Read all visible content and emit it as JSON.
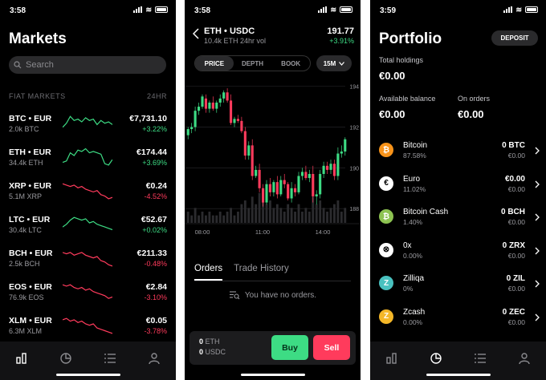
{
  "colors": {
    "positive": "#3ddc84",
    "negative": "#ff3b5c",
    "background": "#000000",
    "panel": "#2a2a2c"
  },
  "markets_screen": {
    "status_time": "3:58",
    "title": "Markets",
    "search_placeholder": "Search",
    "section_label": "FIAT MARKETS",
    "period_label": "24HR",
    "rows": [
      {
        "pair": "BTC • EUR",
        "volume": "2.0k BTC",
        "price": "€7,731.10",
        "change": "+3.22%",
        "trend": "up",
        "spark": [
          6,
          9,
          14,
          11,
          12,
          10,
          13,
          11,
          12,
          8,
          11,
          9,
          10,
          8
        ]
      },
      {
        "pair": "ETH • EUR",
        "volume": "34.4k ETH",
        "price": "€174.44",
        "change": "+3.69%",
        "trend": "up",
        "spark": [
          5,
          6,
          12,
          10,
          14,
          13,
          15,
          12,
          13,
          12,
          11,
          4,
          3,
          7
        ]
      },
      {
        "pair": "XRP • EUR",
        "volume": "5.1M XRP",
        "price": "€0.24",
        "change": "-4.52%",
        "trend": "down",
        "spark": [
          14,
          13,
          12,
          13,
          11,
          12,
          10,
          9,
          8,
          9,
          6,
          5,
          3,
          4
        ]
      },
      {
        "pair": "LTC • EUR",
        "volume": "30.4k LTC",
        "price": "€52.67",
        "change": "+0.02%",
        "trend": "up",
        "spark": [
          7,
          9,
          12,
          14,
          13,
          12,
          13,
          10,
          11,
          9,
          8,
          7,
          6,
          5
        ]
      },
      {
        "pair": "BCH • EUR",
        "volume": "2.5k BCH",
        "price": "€211.33",
        "change": "-0.48%",
        "trend": "down",
        "spark": [
          13,
          12,
          13,
          11,
          12,
          13,
          11,
          10,
          9,
          10,
          7,
          6,
          4,
          3
        ]
      },
      {
        "pair": "EOS • EUR",
        "volume": "76.9k EOS",
        "price": "€2.84",
        "change": "-3.10%",
        "trend": "down",
        "spark": [
          14,
          13,
          14,
          12,
          11,
          12,
          10,
          11,
          9,
          8,
          7,
          6,
          4,
          5
        ]
      },
      {
        "pair": "XLM • EUR",
        "volume": "6.3M XLM",
        "price": "€0.05",
        "change": "-3.78%",
        "trend": "down",
        "spark": [
          13,
          14,
          12,
          13,
          11,
          12,
          10,
          9,
          10,
          7,
          6,
          5,
          4,
          3
        ]
      }
    ],
    "tabs": [
      "markets-icon",
      "portfolio-icon",
      "list-icon",
      "account-icon"
    ]
  },
  "trade_screen": {
    "status_time": "3:58",
    "pair": "ETH • USDC",
    "volume": "10.4k ETH 24hr vol",
    "price": "191.77",
    "change": "+3.91%",
    "view_tabs": [
      "PRICE",
      "DEPTH",
      "BOOK"
    ],
    "interval": "15M",
    "order_tabs": [
      "Orders",
      "Trade History"
    ],
    "empty_orders": "You have no orders.",
    "balances": [
      {
        "amount": "0",
        "unit": "ETH"
      },
      {
        "amount": "0",
        "unit": "USDC"
      }
    ],
    "buy_label": "Buy",
    "sell_label": "Sell"
  },
  "chart_data": {
    "type": "candlestick",
    "ylim": [
      187.3,
      194.3
    ],
    "y_ticks": [
      "194",
      "192",
      "190",
      "188"
    ],
    "x_ticks": [
      "08:00",
      "11:00",
      "14:00"
    ],
    "candles": [
      [
        191.6,
        192.0,
        191.4,
        191.9
      ],
      [
        191.9,
        192.2,
        191.7,
        192.0
      ],
      [
        192.0,
        193.0,
        191.8,
        192.8
      ],
      [
        192.8,
        193.2,
        192.6,
        193.0
      ],
      [
        193.0,
        193.6,
        192.9,
        193.5
      ],
      [
        193.4,
        193.6,
        192.7,
        192.9
      ],
      [
        192.9,
        193.3,
        192.7,
        193.2
      ],
      [
        193.2,
        193.5,
        192.8,
        192.9
      ],
      [
        192.9,
        193.3,
        192.7,
        193.2
      ],
      [
        193.2,
        193.6,
        193.0,
        193.4
      ],
      [
        193.4,
        193.8,
        193.2,
        193.7
      ],
      [
        193.7,
        193.9,
        193.2,
        193.3
      ],
      [
        193.3,
        193.6,
        192.1,
        192.2
      ],
      [
        192.2,
        192.5,
        192.0,
        192.4
      ],
      [
        192.4,
        192.6,
        192.2,
        192.3
      ],
      [
        192.3,
        192.5,
        191.7,
        191.8
      ],
      [
        191.8,
        192.0,
        190.4,
        190.6
      ],
      [
        190.6,
        191.3,
        190.4,
        191.1
      ],
      [
        191.1,
        191.4,
        189.4,
        189.6
      ],
      [
        189.6,
        190.1,
        189.5,
        189.9
      ],
      [
        189.9,
        190.2,
        188.8,
        189.0
      ],
      [
        189.0,
        189.2,
        188.1,
        188.3
      ],
      [
        188.3,
        189.4,
        188.2,
        189.2
      ],
      [
        189.2,
        189.5,
        188.6,
        188.8
      ],
      [
        188.8,
        189.4,
        188.6,
        189.3
      ],
      [
        189.3,
        189.6,
        188.5,
        188.7
      ],
      [
        188.7,
        189.6,
        188.6,
        189.4
      ],
      [
        189.4,
        189.7,
        189.0,
        189.2
      ],
      [
        189.2,
        189.3,
        188.4,
        188.5
      ],
      [
        188.5,
        189.3,
        188.3,
        189.0
      ],
      [
        189.0,
        189.2,
        188.6,
        188.8
      ],
      [
        188.8,
        189.8,
        188.7,
        189.6
      ],
      [
        189.6,
        190.0,
        189.4,
        189.8
      ],
      [
        189.8,
        190.1,
        189.4,
        189.5
      ],
      [
        189.5,
        189.9,
        189.3,
        189.7
      ],
      [
        189.7,
        190.1,
        188.3,
        188.6
      ],
      [
        188.6,
        188.9,
        188.2,
        188.7
      ],
      [
        188.7,
        189.9,
        188.5,
        189.7
      ],
      [
        189.7,
        190.3,
        189.5,
        190.1
      ],
      [
        190.1,
        190.3,
        189.7,
        189.9
      ],
      [
        189.9,
        190.4,
        189.7,
        190.2
      ],
      [
        190.2,
        190.4,
        189.4,
        189.6
      ],
      [
        189.6,
        191.0,
        189.4,
        190.7
      ],
      [
        190.7,
        191.1,
        190.5,
        190.8
      ],
      [
        190.8,
        191.5,
        190.6,
        191.4
      ]
    ],
    "volumes": [
      3,
      2,
      4,
      2,
      3,
      2,
      3,
      2,
      2,
      3,
      2,
      3,
      4,
      2,
      3,
      5,
      6,
      4,
      7,
      5,
      8,
      9,
      5,
      6,
      4,
      5,
      4,
      3,
      5,
      4,
      3,
      5,
      3,
      4,
      3,
      7,
      5,
      6,
      4,
      3,
      4,
      5,
      6,
      3,
      4
    ]
  },
  "portfolio_screen": {
    "status_time": "3:59",
    "title": "Portfolio",
    "deposit_label": "DEPOSIT",
    "total_label": "Total holdings",
    "total_value": "€0.00",
    "available_label": "Available balance",
    "available_value": "€0.00",
    "onorders_label": "On orders",
    "onorders_value": "€0.00",
    "assets": [
      {
        "name": "Bitcoin",
        "pct": "87.58%",
        "balance": "0 BTC",
        "eur": "€0.00",
        "icon": "bitcoin-icon",
        "color": "#f7931a",
        "glyph": "₿"
      },
      {
        "name": "Euro",
        "pct": "11.02%",
        "balance": "€0.00",
        "eur": "€0.00",
        "icon": "euro-icon",
        "color": "#ffffff",
        "glyph": "€"
      },
      {
        "name": "Bitcoin Cash",
        "pct": "1.40%",
        "balance": "0 BCH",
        "eur": "€0.00",
        "icon": "bitcoin-cash-icon",
        "color": "#8dc351",
        "glyph": "₿"
      },
      {
        "name": "0x",
        "pct": "0.00%",
        "balance": "0 ZRX",
        "eur": "€0.00",
        "icon": "zrx-icon",
        "color": "#ffffff",
        "glyph": "⊗"
      },
      {
        "name": "Zilliqa",
        "pct": "0%",
        "balance": "0 ZIL",
        "eur": "€0.00",
        "icon": "zilliqa-icon",
        "color": "#49c1bf",
        "glyph": "Z"
      },
      {
        "name": "Zcash",
        "pct": "0.00%",
        "balance": "0 ZEC",
        "eur": "€0.00",
        "icon": "zcash-icon",
        "color": "#f4b728",
        "glyph": "Z"
      }
    ]
  }
}
